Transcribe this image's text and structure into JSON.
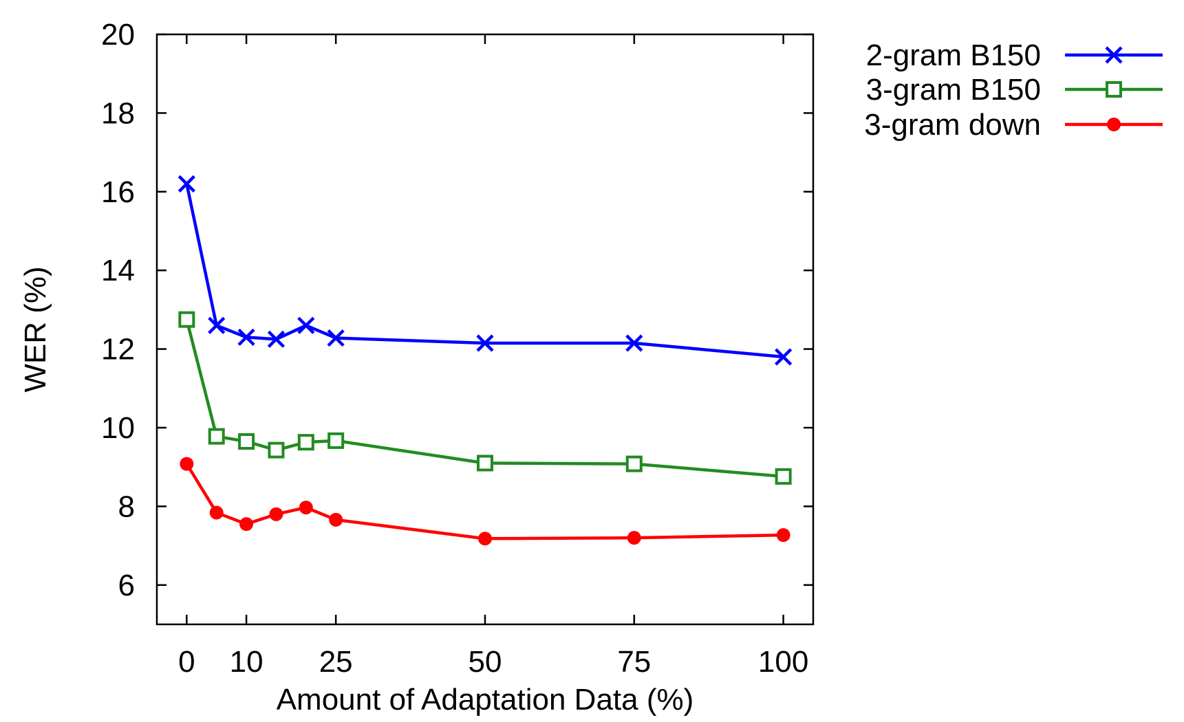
{
  "chart_data": {
    "type": "line",
    "title": "",
    "xlabel": "Amount of Adaptation Data (%)",
    "ylabel": "WER (%)",
    "xlim": [
      -5,
      105
    ],
    "ylim": [
      5,
      20
    ],
    "xticks": [
      0,
      10,
      25,
      50,
      75,
      100
    ],
    "yticks": [
      6,
      8,
      10,
      12,
      14,
      16,
      18,
      20
    ],
    "grid": false,
    "legend_position": "outside-top-right",
    "x": [
      0,
      5,
      10,
      15,
      20,
      25,
      50,
      75,
      100
    ],
    "series": [
      {
        "name": "2-gram B150",
        "color": "#0000ff",
        "marker": "x-icon",
        "values": [
          16.2,
          12.6,
          12.3,
          12.25,
          12.6,
          12.28,
          12.15,
          12.15,
          11.8
        ]
      },
      {
        "name": "3-gram B150",
        "color": "#228b22",
        "marker": "open-square-icon",
        "values": [
          12.75,
          9.78,
          9.65,
          9.43,
          9.63,
          9.67,
          9.1,
          9.08,
          8.76
        ]
      },
      {
        "name": "3-gram down",
        "color": "#ff0000",
        "marker": "filled-circle-icon",
        "values": [
          9.08,
          7.84,
          7.55,
          7.8,
          7.97,
          7.66,
          7.18,
          7.2,
          7.27
        ]
      }
    ]
  }
}
